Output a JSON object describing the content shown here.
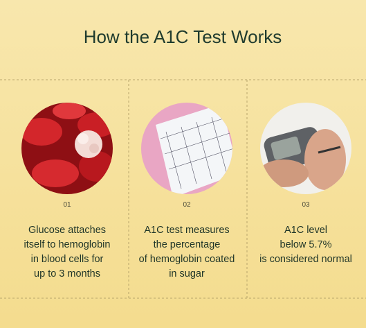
{
  "title": "How the A1C Test Works",
  "steps": [
    {
      "number": "01",
      "lines": [
        "Glucose attaches",
        "itself to hemoglobin",
        "in blood cells for",
        "up to 3 months"
      ]
    },
    {
      "number": "02",
      "lines": [
        "A1C test measures",
        "the percentage",
        "of hemoglobin coated",
        "in sugar"
      ]
    },
    {
      "number": "03",
      "lines": [
        "A1C level",
        "below 5.7%",
        "is considered normal"
      ]
    }
  ]
}
